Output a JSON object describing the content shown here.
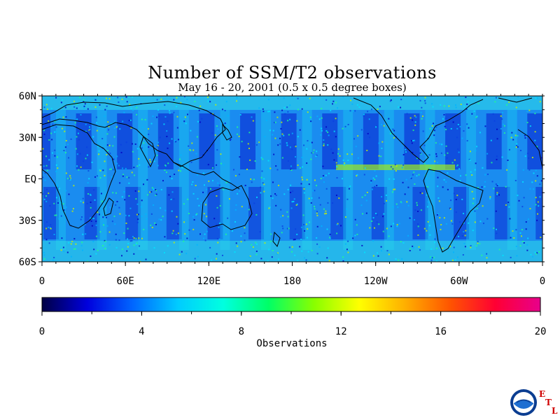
{
  "title": "Number of SSM/T2 observations",
  "subtitle": "May 16 - 20, 2001 (0.5 x 0.5 degree boxes)",
  "map": {
    "lat_labels": [
      "60N",
      "30N",
      "EQ",
      "30S",
      "60S"
    ],
    "lon_labels": [
      "0",
      "60E",
      "120E",
      "180",
      "120W",
      "60W",
      "0"
    ],
    "lat_range": [
      -60,
      60
    ],
    "lon_range": [
      0,
      360
    ]
  },
  "colorbar": {
    "title": "Observations",
    "ticks": [
      "0",
      "4",
      "8",
      "12",
      "16",
      "20"
    ],
    "min": 0,
    "max": 20,
    "colors": [
      "#000044",
      "#0000dd",
      "#0066ff",
      "#00ccff",
      "#00ffe0",
      "#00ff66",
      "#88ff00",
      "#ffff00",
      "#ffb000",
      "#ff5500",
      "#ff0033",
      "#e8008c"
    ]
  },
  "logo": {
    "name": "NOAA",
    "etl_letters": [
      "E",
      "T",
      "L"
    ]
  }
}
